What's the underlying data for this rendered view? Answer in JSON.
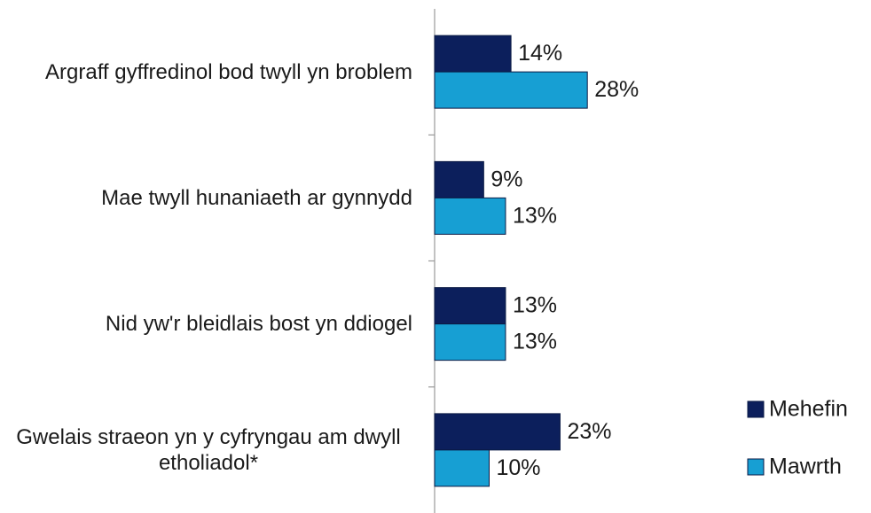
{
  "chart_data": {
    "type": "bar",
    "orientation": "horizontal",
    "categories": [
      "Argraff gyffredinol bod twyll yn broblem",
      "Mae twyll hunaniaeth ar gynnydd",
      "Nid yw'r bleidlais bost yn ddiogel",
      "Gwelais straeon yn y cyfryngau am dwyll etholiadol*"
    ],
    "series": [
      {
        "name": "Mehefin",
        "color": "#0c1f5c",
        "values": [
          14,
          9,
          13,
          23
        ],
        "value_labels": [
          "14%",
          "9%",
          "13%",
          "23%"
        ]
      },
      {
        "name": "Mawrth",
        "color": "#179fd3",
        "values": [
          28,
          13,
          13,
          10
        ],
        "value_labels": [
          "28%",
          "13%",
          "13%",
          "10%"
        ]
      }
    ],
    "legend": "right"
  }
}
